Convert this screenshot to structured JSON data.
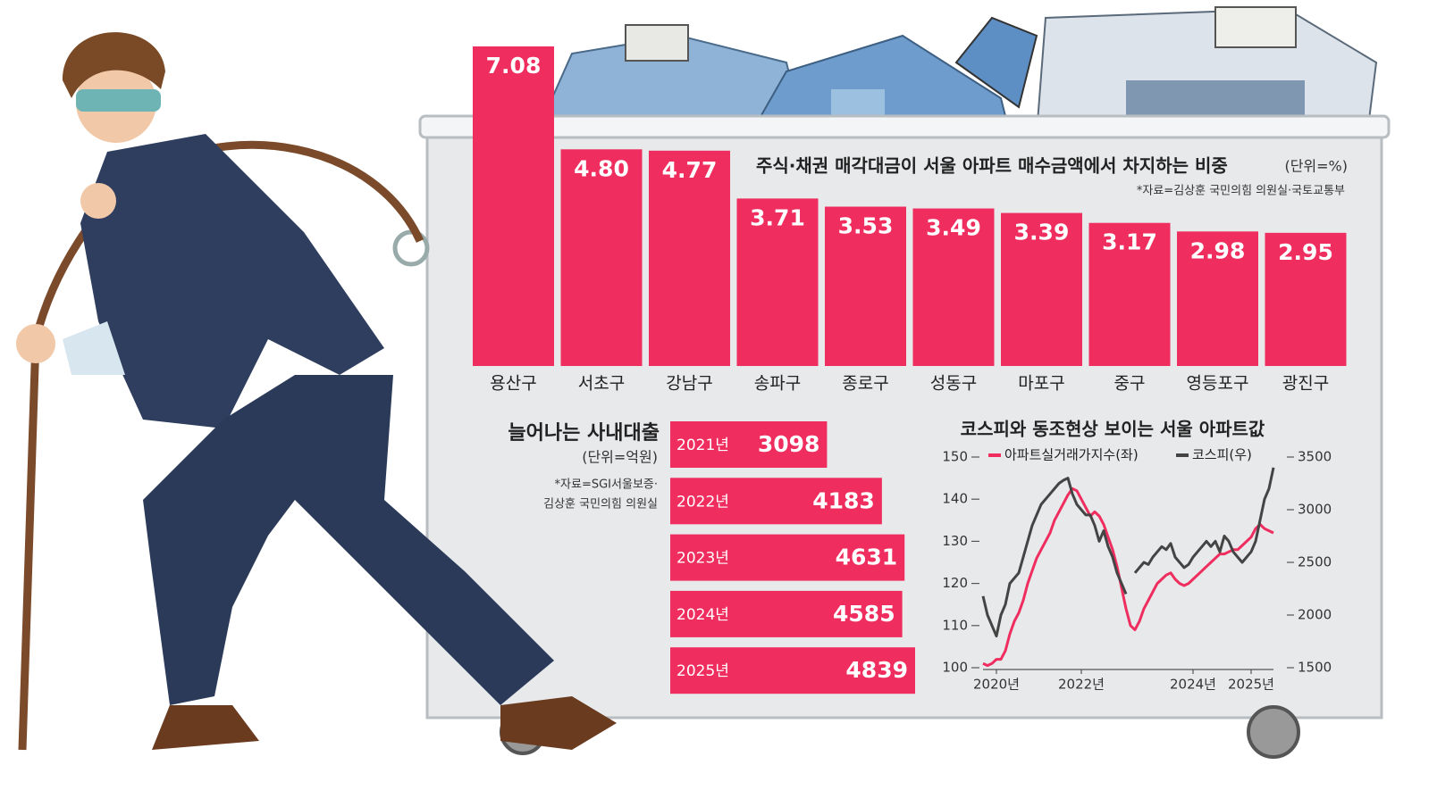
{
  "chart_data": [
    {
      "type": "bar",
      "title": "주식·채권 매각대금이 서울 아파트 매수금액에서 차지하는 비중",
      "unit": "(단위=%)",
      "source": "*자료=김상훈 국민의힘 의원실·국토교통부",
      "categories": [
        "용산구",
        "서초구",
        "강남구",
        "송파구",
        "종로구",
        "성동구",
        "마포구",
        "중구",
        "영등포구",
        "광진구"
      ],
      "values": [
        7.08,
        4.8,
        4.77,
        3.71,
        3.53,
        3.49,
        3.39,
        3.17,
        2.98,
        2.95
      ],
      "value_labels": [
        "7.08",
        "4.80",
        "4.77",
        "3.71",
        "3.53",
        "3.49",
        "3.39",
        "3.17",
        "2.98",
        "2.95"
      ],
      "color": "#ef2d5e"
    },
    {
      "type": "bar",
      "orientation": "horizontal",
      "title": "늘어나는 사내대출",
      "unit": "(단위=억원)",
      "source": [
        "*자료=SGI서울보증·",
        "김상훈 국민의힘 의원실"
      ],
      "categories": [
        "2021년",
        "2022년",
        "2023년",
        "2024년",
        "2025년"
      ],
      "values": [
        3098,
        4183,
        4631,
        4585,
        4839
      ],
      "color": "#ef2d5e"
    },
    {
      "type": "line",
      "title": "코스피와 동조현상 보이는 서울 아파트값",
      "categories": [
        null,
        null,
        null,
        "2020년",
        null,
        null,
        null,
        null,
        null,
        null,
        null,
        null,
        null,
        null,
        null,
        null,
        null,
        null,
        null,
        null,
        null,
        null,
        "2022년",
        null,
        null,
        null,
        null,
        null,
        null,
        null,
        null,
        null,
        null,
        null,
        null,
        null,
        null,
        null,
        null,
        null,
        null,
        null,
        null,
        null,
        null,
        null,
        null,
        "2024년",
        null,
        null,
        null,
        null,
        null,
        null,
        null,
        null,
        null,
        null,
        null,
        null,
        "2025년",
        null,
        null,
        null,
        null,
        null
      ],
      "ylim": [
        100,
        150
      ],
      "yticks": [
        100,
        110,
        120,
        130,
        140,
        150
      ],
      "y2lim": [
        1500,
        3500
      ],
      "y2ticks": [
        1500,
        2000,
        2500,
        3000,
        3500
      ],
      "series": [
        {
          "name": "아파트실거래가지수(좌)",
          "color": "#ef2d5e",
          "values": [
            101,
            100.5,
            101,
            102,
            102,
            104,
            108,
            111,
            113,
            116,
            120,
            123,
            126,
            128,
            130,
            132,
            135,
            137,
            139,
            141,
            142.5,
            142,
            140,
            138,
            136,
            137,
            136,
            134,
            131,
            128,
            124,
            119,
            114,
            110,
            109,
            111,
            114,
            116,
            118,
            120,
            121,
            122,
            122.5,
            121,
            120,
            119.5,
            120,
            121,
            122,
            123,
            124,
            125,
            126,
            127,
            127,
            127.5,
            128,
            128,
            129,
            130,
            131,
            133,
            134,
            133,
            132.5,
            132
          ]
        },
        {
          "name": "코스피(우)",
          "color": "#444444",
          "axis": "y2",
          "values": [
            2180,
            2000,
            1900,
            1800,
            2000,
            2100,
            2300,
            2350,
            2400,
            2550,
            2700,
            2850,
            2950,
            3050,
            3100,
            3150,
            3200,
            3250,
            3280,
            3300,
            3150,
            3050,
            3000,
            2950,
            2950,
            2850,
            2700,
            2800,
            2650,
            2550,
            2400,
            2300,
            2200,
            null,
            2400,
            2450,
            2500,
            2480,
            2550,
            2600,
            2650,
            2620,
            2680,
            2550,
            2500,
            2450,
            2480,
            2550,
            2600,
            2650,
            2700,
            2650,
            2700,
            2600,
            2750,
            2700,
            2600,
            2550,
            2500,
            2550,
            2600,
            2700,
            2900,
            3100,
            3200,
            3400
          ]
        }
      ]
    }
  ]
}
